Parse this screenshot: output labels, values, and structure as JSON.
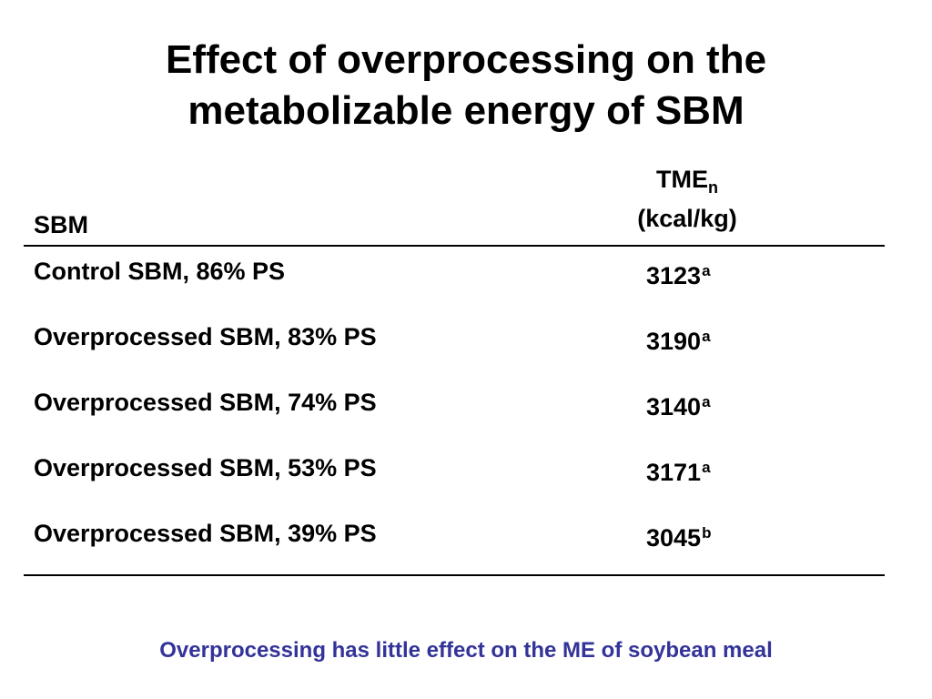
{
  "slide": {
    "title_line1": "Effect of overprocessing on the",
    "title_line2": "metabolizable energy of SBM",
    "footnote": "Overprocessing has little effect on the ME of soybean meal",
    "footnote_color": "#333399",
    "text_color": "#000000",
    "background_color": "#ffffff"
  },
  "table": {
    "header_col1": "SBM",
    "header_col2_main": "TME",
    "header_col2_sub": "n",
    "header_col2_unit": "(kcal/kg)",
    "rows": [
      {
        "label": "Control SBM, 86% PS",
        "value": "3123",
        "sup": "a"
      },
      {
        "label": "Overprocessed SBM, 83% PS",
        "value": "3190",
        "sup": "a"
      },
      {
        "label": "Overprocessed SBM, 74% PS",
        "value": "3140",
        "sup": "a"
      },
      {
        "label": "Overprocessed SBM, 53% PS",
        "value": "3171",
        "sup": "a"
      },
      {
        "label": "Overprocessed SBM, 39% PS",
        "value": "3045",
        "sup": "b"
      }
    ]
  }
}
